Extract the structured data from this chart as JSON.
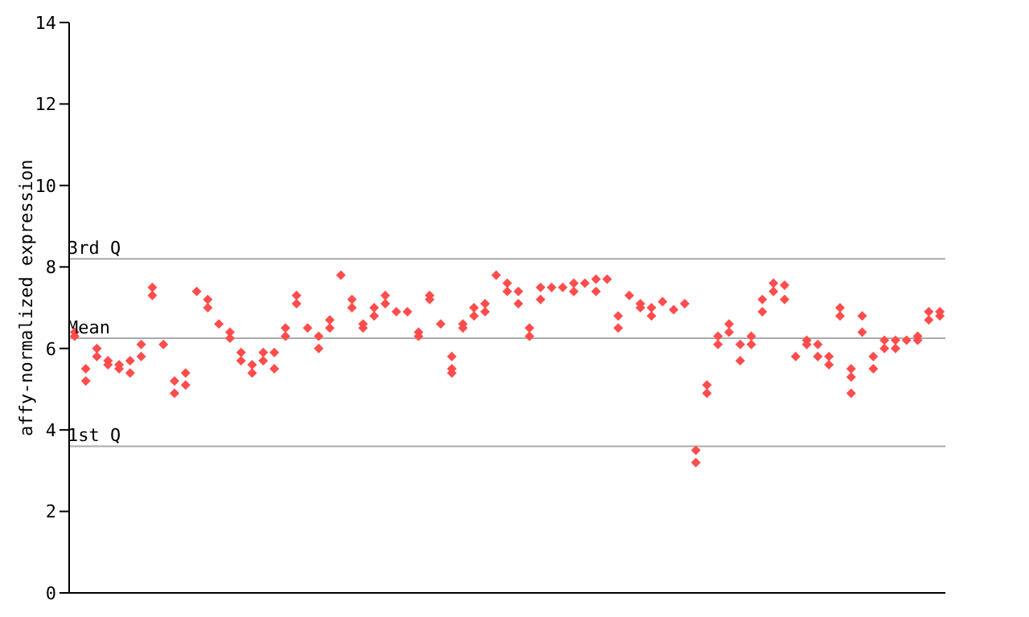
{
  "chart_data": {
    "type": "scatter",
    "ylabel": "affy-normalized expression",
    "categories": [
      null,
      null,
      null,
      null,
      null,
      null,
      null,
      null,
      null,
      null,
      null,
      null,
      null,
      null,
      null,
      null,
      null,
      null,
      null,
      null,
      null,
      null,
      null,
      null,
      null,
      null,
      null,
      null,
      null,
      null,
      null,
      null,
      null,
      null,
      null,
      null,
      null,
      null,
      null,
      null,
      null,
      null,
      null,
      null,
      null,
      null,
      null,
      null,
      null,
      null,
      null,
      null,
      null,
      null,
      null,
      null,
      null,
      null,
      null,
      null,
      null,
      null,
      null,
      null,
      null,
      null,
      null,
      null,
      null,
      null,
      null,
      null,
      null,
      null,
      null,
      null,
      null,
      null,
      null
    ],
    "ylim": [
      0,
      14
    ],
    "yticks": [
      0,
      2,
      4,
      6,
      8,
      10,
      12,
      14
    ],
    "tick_labels": "y",
    "marker": "diamond",
    "ref_lines": [
      {
        "axis": "y",
        "value": 8.2,
        "label": "3rd Q",
        "color": "#aaaaaa"
      },
      {
        "axis": "y",
        "value": 6.25,
        "label": "Mean",
        "color": "#aaaaaa"
      },
      {
        "axis": "y",
        "value": 3.6,
        "label": "1st Q",
        "color": "#aaaaaa"
      }
    ],
    "series": [
      {
        "color": "#ff4c4c",
        "values": [
          6.4,
          5.5,
          6.0,
          5.7,
          5.6,
          5.7,
          5.8,
          7.5,
          6.1,
          5.2,
          5.4,
          7.4,
          7.2,
          6.6,
          6.4,
          5.9,
          5.6,
          5.9,
          5.9,
          6.5,
          7.3,
          6.5,
          6.3,
          6.5,
          7.8,
          7.2,
          6.5,
          7.0,
          7.1,
          6.9,
          6.9,
          6.4,
          7.2,
          6.6,
          5.8,
          6.6,
          6.8,
          7.1,
          7.8,
          7.6,
          7.1,
          6.3,
          7.2,
          7.5,
          7.5,
          7.6,
          7.6,
          7.7,
          7.7,
          6.5,
          7.3,
          7.1,
          7.0,
          7.15,
          6.95,
          7.1,
          3.5,
          4.9,
          6.3,
          6.4,
          5.7,
          6.3,
          6.9,
          7.6,
          7.55,
          5.8,
          6.1,
          5.8,
          5.6,
          7.0,
          5.5,
          6.4,
          5.5,
          6.2,
          6.2,
          6.2,
          6.2,
          6.9,
          6.8
        ]
      },
      {
        "color": "#ff4c4c",
        "values": [
          6.3,
          5.2,
          5.8,
          5.6,
          5.5,
          5.4,
          6.1,
          7.3,
          null,
          4.9,
          5.1,
          null,
          7.0,
          null,
          6.25,
          5.7,
          5.4,
          5.7,
          5.5,
          6.3,
          7.1,
          null,
          6.0,
          6.7,
          null,
          7.0,
          6.6,
          6.8,
          7.3,
          null,
          null,
          6.3,
          7.3,
          null,
          5.5,
          6.5,
          7.0,
          6.9,
          null,
          7.4,
          7.4,
          6.5,
          7.5,
          null,
          null,
          7.4,
          null,
          7.4,
          null,
          6.8,
          null,
          7.0,
          6.8,
          null,
          null,
          null,
          3.2,
          5.1,
          6.1,
          6.6,
          6.1,
          6.1,
          7.2,
          7.4,
          7.2,
          null,
          6.2,
          6.1,
          5.8,
          6.8,
          5.3,
          6.8,
          5.8,
          6.0,
          6.0,
          null,
          6.3,
          6.7,
          6.9
        ]
      },
      {
        "color": "#ff4c4c",
        "values": [
          null,
          null,
          null,
          null,
          null,
          null,
          null,
          null,
          null,
          null,
          null,
          null,
          null,
          null,
          null,
          null,
          null,
          null,
          null,
          null,
          null,
          null,
          null,
          null,
          null,
          null,
          null,
          null,
          null,
          null,
          null,
          null,
          null,
          null,
          5.4,
          null,
          null,
          null,
          null,
          null,
          null,
          null,
          null,
          null,
          null,
          null,
          null,
          null,
          null,
          null,
          null,
          null,
          null,
          null,
          null,
          null,
          null,
          null,
          null,
          null,
          null,
          null,
          null,
          null,
          null,
          null,
          null,
          null,
          null,
          null,
          4.9,
          null,
          null,
          null,
          null,
          null,
          null,
          null,
          null
        ]
      }
    ]
  }
}
